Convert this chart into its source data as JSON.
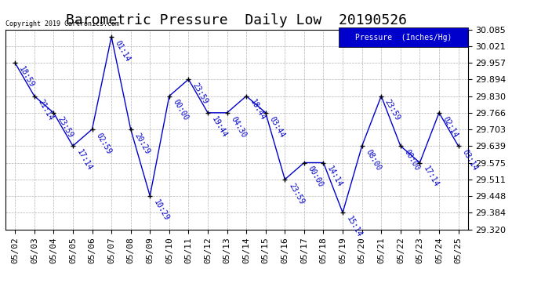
{
  "title": "Barometric Pressure  Daily Low  20190526",
  "copyright": "Copyright 2019 Cartronics.com",
  "legend_label": "Pressure  (Inches/Hg)",
  "dates": [
    "05/02",
    "05/03",
    "05/04",
    "05/05",
    "05/06",
    "05/07",
    "05/08",
    "05/09",
    "05/10",
    "05/11",
    "05/12",
    "05/13",
    "05/14",
    "05/15",
    "05/16",
    "05/17",
    "05/18",
    "05/19",
    "05/20",
    "05/21",
    "05/22",
    "05/23",
    "05/24",
    "05/25"
  ],
  "values": [
    29.957,
    29.83,
    29.766,
    29.639,
    29.703,
    30.057,
    29.703,
    29.448,
    29.83,
    29.894,
    29.766,
    29.766,
    29.83,
    29.766,
    29.511,
    29.575,
    29.575,
    29.384,
    29.639,
    29.83,
    29.639,
    29.575,
    29.766,
    29.639
  ],
  "times": [
    "18:59",
    "21:14",
    "23:59",
    "17:14",
    "02:59",
    "01:14",
    "20:29",
    "10:29",
    "00:00",
    "23:59",
    "19:44",
    "04:30",
    "18:44",
    "03:44",
    "23:59",
    "00:00",
    "14:14",
    "15:14",
    "08:00",
    "23:59",
    "00:00",
    "17:14",
    "02:14",
    "03:14"
  ],
  "ylim": [
    29.32,
    30.085
  ],
  "yticks": [
    29.32,
    29.384,
    29.448,
    29.511,
    29.575,
    29.639,
    29.703,
    29.766,
    29.83,
    29.894,
    29.957,
    30.021,
    30.085
  ],
  "line_color": "#0000cc",
  "marker_color": "#000000",
  "bg_color": "#ffffff",
  "grid_color": "#aaaaaa",
  "legend_bg": "#0000cc",
  "legend_text_color": "#ffffff",
  "title_color": "#000000",
  "copyright_color": "#000000",
  "label_color": "#0000cc",
  "title_fontsize": 13,
  "tick_fontsize": 8,
  "annotation_fontsize": 7
}
